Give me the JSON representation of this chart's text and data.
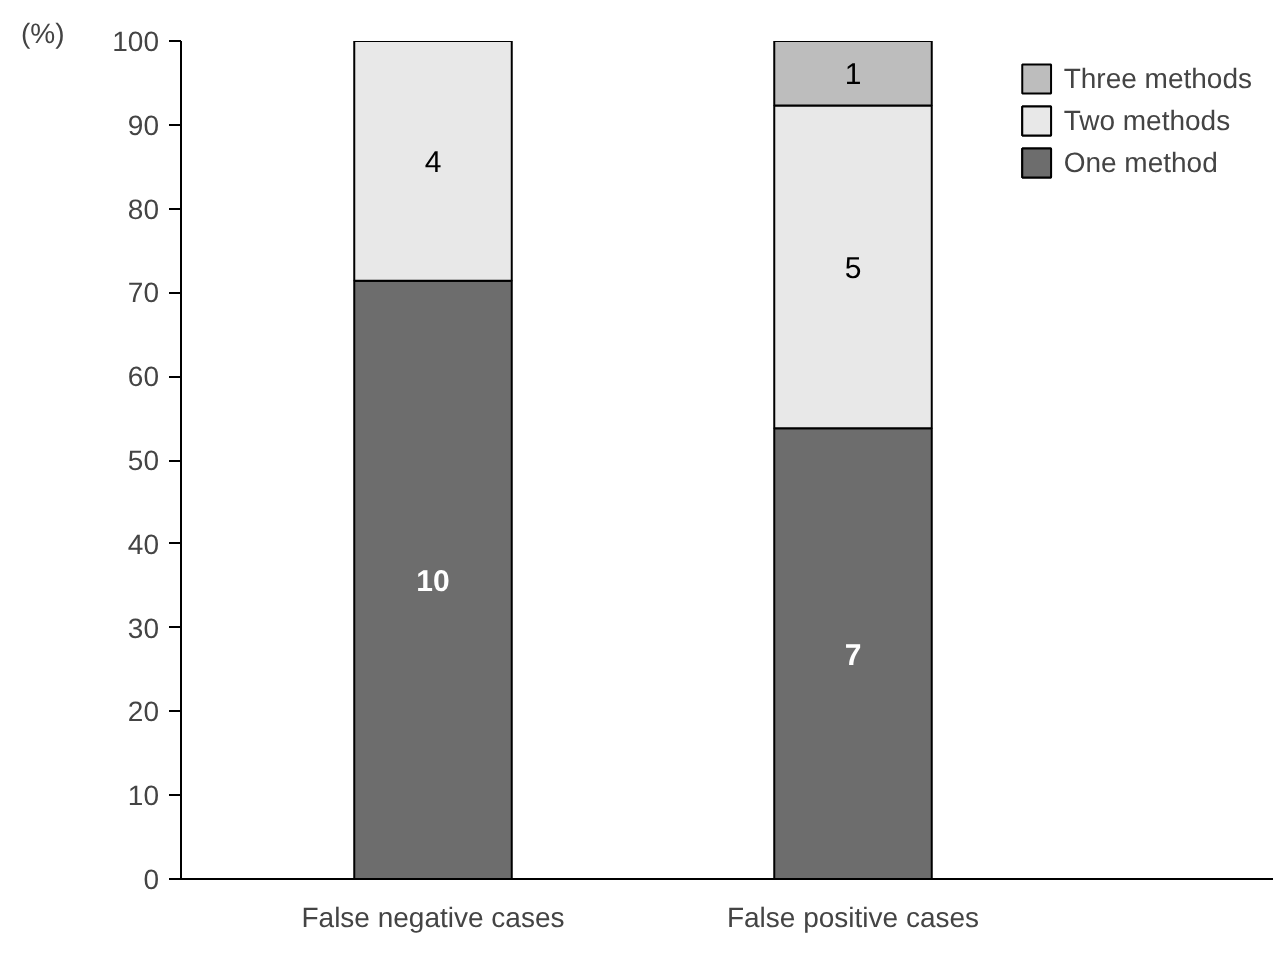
{
  "chart_data": {
    "type": "bar",
    "stacked": true,
    "ylabel": "(%)",
    "categories": [
      "False negative cases",
      "False positive cases"
    ],
    "series": [
      {
        "name": "One method",
        "color": "#6d6d6d",
        "values": [
          71.4,
          53.8
        ]
      },
      {
        "name": "Two methods",
        "color": "#e8e8e8",
        "values": [
          28.6,
          38.5
        ]
      },
      {
        "name": "Three methods",
        "color": "#bdbdbd",
        "values": [
          null,
          7.7
        ]
      }
    ],
    "annotations": [
      "10",
      "7",
      "4",
      "5",
      "1"
    ],
    "ylim": [
      0,
      100
    ],
    "yticks": [
      0,
      10,
      20,
      30,
      40,
      50,
      60,
      70,
      80,
      90,
      100
    ],
    "grid": false,
    "legend": "top right"
  }
}
